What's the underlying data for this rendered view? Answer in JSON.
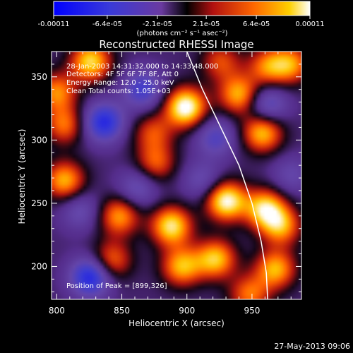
{
  "colorbar": {
    "tick_labels": [
      "-0.00011",
      "-6.4e-05",
      "-2.1e-05",
      "2.1e-05",
      "6.4e-05",
      "0.00011"
    ],
    "units": "(photons cm⁻² s⁻¹ asec⁻²)",
    "range": [
      -0.00011,
      0.00011
    ]
  },
  "footer_date": "27-May-2013 09:06",
  "chart_data": {
    "type": "heatmap",
    "title": "Reconstructed RHESSI Image",
    "xlabel": "Heliocentric X (arcsec)",
    "ylabel": "Heliocentric Y (arcsec)",
    "xlim": [
      796,
      988
    ],
    "ylim": [
      174,
      370
    ],
    "x_ticks": [
      800,
      850,
      900,
      950
    ],
    "y_ticks": [
      200,
      250,
      300,
      350
    ],
    "annotations": [
      "28-Jan-2003 14:31:32.000 to 14:33:48.000",
      "Detectors: 4F 5F 6F 7F 8F, Att 0",
      "Energy Range: 12.0 - 25.0 keV",
      "Clean    Total counts: 1.05E+03"
    ],
    "peak_label": "Position of Peak = [899,326]",
    "peak": [
      899,
      326
    ],
    "sources": [
      {
        "x": 899,
        "y": 326,
        "amp": 1.0
      },
      {
        "x": 826,
        "y": 362,
        "amp": 0.8
      },
      {
        "x": 800,
        "y": 338,
        "amp": 0.6
      },
      {
        "x": 806,
        "y": 312,
        "amp": 0.55
      },
      {
        "x": 806,
        "y": 268,
        "amp": 0.7
      },
      {
        "x": 848,
        "y": 240,
        "amp": 0.65
      },
      {
        "x": 842,
        "y": 205,
        "amp": 0.55
      },
      {
        "x": 876,
        "y": 282,
        "amp": 0.5
      },
      {
        "x": 888,
        "y": 232,
        "amp": 0.85
      },
      {
        "x": 896,
        "y": 200,
        "amp": 0.7
      },
      {
        "x": 922,
        "y": 206,
        "amp": 0.75
      },
      {
        "x": 930,
        "y": 252,
        "amp": 0.95
      },
      {
        "x": 960,
        "y": 246,
        "amp": 0.8
      },
      {
        "x": 972,
        "y": 232,
        "amp": 0.65
      },
      {
        "x": 968,
        "y": 198,
        "amp": 0.7
      },
      {
        "x": 948,
        "y": 178,
        "amp": 0.55
      },
      {
        "x": 940,
        "y": 336,
        "amp": 0.7
      },
      {
        "x": 958,
        "y": 306,
        "amp": 0.75
      },
      {
        "x": 980,
        "y": 360,
        "amp": 0.6
      },
      {
        "x": 962,
        "y": 358,
        "amp": 0.55
      },
      {
        "x": 874,
        "y": 306,
        "amp": 0.45
      },
      {
        "x": 926,
        "y": 362,
        "amp": 0.45
      },
      {
        "x": 836,
        "y": 314,
        "amp": -0.75
      },
      {
        "x": 826,
        "y": 192,
        "amp": -0.8
      },
      {
        "x": 866,
        "y": 340,
        "amp": -0.55
      },
      {
        "x": 962,
        "y": 328,
        "amp": -0.5
      },
      {
        "x": 922,
        "y": 302,
        "amp": -0.45
      },
      {
        "x": 862,
        "y": 262,
        "amp": -0.4
      },
      {
        "x": 818,
        "y": 244,
        "amp": -0.35
      },
      {
        "x": 912,
        "y": 268,
        "amp": -0.35
      },
      {
        "x": 980,
        "y": 272,
        "amp": -0.3
      }
    ],
    "limb": [
      [
        900,
        370
      ],
      [
        912,
        340
      ],
      [
        926,
        310
      ],
      [
        940,
        280
      ],
      [
        950,
        250
      ],
      [
        957,
        220
      ],
      [
        961,
        195
      ],
      [
        962,
        174
      ]
    ]
  }
}
